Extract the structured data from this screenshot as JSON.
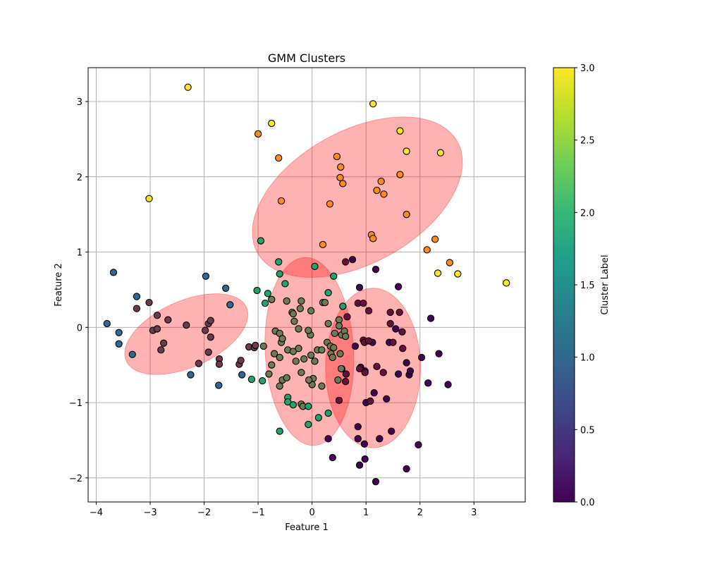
{
  "chart_data": {
    "type": "scatter",
    "title": "GMM Clusters",
    "xlabel": "Feature 1",
    "ylabel": "Feature 2",
    "xlim": [
      -4.15,
      3.95
    ],
    "ylim": [
      -2.32,
      3.45
    ],
    "xticks": [
      -4,
      -3,
      -2,
      -1,
      0,
      1,
      2,
      3
    ],
    "yticks": [
      -2,
      -1,
      0,
      1,
      2,
      3
    ],
    "grid": true,
    "colorbar": {
      "label": "Cluster Label",
      "range": [
        0.0,
        3.0
      ],
      "ticks": [
        "0.0",
        "0.5",
        "1.0",
        "1.5",
        "2.0",
        "2.5",
        "3.0"
      ],
      "colormap": [
        "#440154",
        "#482878",
        "#3e4989",
        "#31688e",
        "#26828e",
        "#1f9e89",
        "#35b779",
        "#6ece58",
        "#b5de2b",
        "#fde725"
      ]
    },
    "ellipses": [
      {
        "cx": 0.84,
        "cy": 1.73,
        "rx": 2.12,
        "ry": 0.88,
        "angle_deg": -29,
        "color": "#ff0000",
        "alpha": 0.3
      },
      {
        "cx": -2.33,
        "cy": -0.09,
        "rx": 1.22,
        "ry": 0.44,
        "angle_deg": -24,
        "color": "#ff0000",
        "alpha": 0.3
      },
      {
        "cx": -0.05,
        "cy": -0.32,
        "rx": 0.82,
        "ry": 1.25,
        "angle_deg": -3,
        "color": "#ff0000",
        "alpha": 0.3
      },
      {
        "cx": 1.13,
        "cy": -0.54,
        "rx": 0.88,
        "ry": 1.06,
        "angle_deg": 0,
        "color": "#ff0000",
        "alpha": 0.3
      }
    ],
    "series": [
      {
        "label_value": 0,
        "color": "#440154",
        "points": [
          [
            0.75,
            0.9
          ],
          [
            0.88,
            0.53
          ],
          [
            0.8,
            -0.25
          ],
          [
            0.9,
            -0.53
          ],
          [
            0.98,
            -0.58
          ],
          [
            0.85,
            -1.32
          ],
          [
            0.97,
            -1.55
          ],
          [
            0.85,
            -1.48
          ],
          [
            0.98,
            -1.75
          ],
          [
            1.0,
            -1.0
          ],
          [
            1.15,
            -0.87
          ],
          [
            1.25,
            -1.48
          ],
          [
            1.38,
            -0.95
          ],
          [
            1.47,
            -1.38
          ],
          [
            1.6,
            -0.62
          ],
          [
            1.75,
            -0.47
          ],
          [
            1.8,
            -0.63
          ],
          [
            1.82,
            -0.58
          ],
          [
            1.97,
            -1.56
          ],
          [
            2.03,
            -0.4
          ],
          [
            2.15,
            -0.74
          ],
          [
            2.2,
            0.12
          ],
          [
            2.35,
            -0.35
          ],
          [
            2.52,
            -0.76
          ],
          [
            1.18,
            0.77
          ],
          [
            1.6,
            0.54
          ],
          [
            0.3,
            -1.48
          ],
          [
            0.38,
            -1.73
          ],
          [
            0.88,
            -1.83
          ],
          [
            1.18,
            -2.05
          ],
          [
            1.75,
            -1.88
          ],
          [
            1.12,
            -0.2
          ],
          [
            1.55,
            -0.02
          ],
          [
            1.43,
            -0.2
          ]
        ]
      },
      {
        "label_value": 0.45,
        "color": "#6b0e3d",
        "points": [
          [
            0.62,
            0.87
          ],
          [
            0.85,
            0.32
          ],
          [
            0.95,
            0.32
          ],
          [
            1.05,
            0.22
          ],
          [
            0.65,
            0.14
          ],
          [
            0.95,
            -0.17
          ],
          [
            0.97,
            -0.2
          ],
          [
            1.05,
            -0.18
          ],
          [
            1.2,
            -0.52
          ],
          [
            1.32,
            -0.6
          ],
          [
            1.45,
            0.2
          ],
          [
            1.45,
            0.05
          ],
          [
            1.62,
            0.2
          ],
          [
            1.67,
            -0.06
          ],
          [
            1.68,
            -0.28
          ],
          [
            1.5,
            -0.2
          ],
          [
            0.88,
            -0.55
          ],
          [
            0.98,
            -0.6
          ],
          [
            1.08,
            -0.98
          ],
          [
            0.5,
            -0.97
          ],
          [
            0.62,
            -0.72
          ],
          [
            0.55,
            -0.55
          ],
          [
            0.63,
            -0.62
          ]
        ]
      },
      {
        "label_value": 0.6,
        "color": "#6e3a4e",
        "points": [
          [
            -3.02,
            0.33
          ],
          [
            -3.25,
            0.25
          ],
          [
            -2.95,
            -0.04
          ],
          [
            -2.87,
            -0.02
          ],
          [
            -2.87,
            0.16
          ],
          [
            -2.8,
            -0.3
          ],
          [
            -2.75,
            -0.21
          ],
          [
            -2.67,
            0.1
          ],
          [
            -2.33,
            0.03
          ],
          [
            -2.1,
            -0.48
          ],
          [
            -1.98,
            -0.04
          ],
          [
            -1.92,
            0.05
          ],
          [
            -1.88,
            0.09
          ],
          [
            -1.92,
            -0.33
          ],
          [
            -1.88,
            -0.13
          ],
          [
            -1.72,
            -0.42
          ],
          [
            -1.72,
            -0.49
          ],
          [
            -1.35,
            -0.49
          ],
          [
            -1.32,
            -0.44
          ],
          [
            -1.17,
            -0.26
          ],
          [
            -1.07,
            -0.27
          ],
          [
            -1.05,
            -0.24
          ]
        ]
      },
      {
        "label_value": 1.0,
        "color": "#31688e",
        "points": [
          [
            -3.68,
            0.73
          ],
          [
            -3.8,
            0.05
          ],
          [
            -3.58,
            -0.07
          ],
          [
            -3.58,
            -0.22
          ],
          [
            -3.33,
            -0.36
          ],
          [
            -3.25,
            0.41
          ],
          [
            -1.97,
            0.68
          ],
          [
            -1.6,
            0.52
          ],
          [
            -1.52,
            0.3
          ],
          [
            -1.73,
            -0.77
          ],
          [
            -2.25,
            -0.63
          ],
          [
            -1.3,
            -0.63
          ]
        ]
      },
      {
        "label_value": 1.45,
        "color": "#6e7a52",
        "points": [
          [
            -0.9,
            -0.25
          ],
          [
            -0.75,
            0.37
          ],
          [
            -0.68,
            -0.05
          ],
          [
            -0.6,
            -0.08
          ],
          [
            -0.57,
            -0.2
          ],
          [
            -0.55,
            -0.15
          ],
          [
            -0.47,
            0.35
          ],
          [
            -0.37,
            0.2
          ],
          [
            -0.33,
            0.08
          ],
          [
            -0.35,
            0.18
          ],
          [
            -0.22,
            0.25
          ],
          [
            -0.2,
            0.35
          ],
          [
            -0.02,
            0.22
          ],
          [
            -0.25,
            -0.02
          ],
          [
            -0.03,
            -0.1
          ],
          [
            -0.07,
            -0.04
          ],
          [
            -0.45,
            -0.3
          ],
          [
            -0.35,
            -0.32
          ],
          [
            -0.25,
            -0.28
          ],
          [
            -0.15,
            -0.42
          ],
          [
            -0.3,
            -0.45
          ],
          [
            -0.6,
            -0.4
          ],
          [
            -0.7,
            -0.35
          ],
          [
            -0.75,
            -0.5
          ],
          [
            -0.8,
            -0.62
          ],
          [
            -0.6,
            -0.78
          ],
          [
            -0.55,
            -0.7
          ],
          [
            -0.47,
            -0.67
          ],
          [
            -0.2,
            -0.6
          ],
          [
            -0.02,
            -0.37
          ],
          [
            0.1,
            -0.3
          ],
          [
            0.18,
            -0.3
          ],
          [
            0.28,
            -0.2
          ],
          [
            0.34,
            -0.25
          ],
          [
            0.4,
            -0.27
          ],
          [
            0.42,
            -0.08
          ],
          [
            0.5,
            0.1
          ],
          [
            0.55,
            -0.1
          ],
          [
            0.6,
            -0.05
          ],
          [
            0.62,
            -0.12
          ],
          [
            0.52,
            -0.35
          ],
          [
            0.35,
            -0.35
          ],
          [
            0.38,
            -0.4
          ],
          [
            0.3,
            0.05
          ],
          [
            0.2,
            0.33
          ],
          [
            0.24,
            0.33
          ],
          [
            0.54,
            -0.55
          ],
          [
            0.05,
            -0.45
          ],
          [
            0.02,
            -0.68
          ],
          [
            0.0,
            -0.76
          ],
          [
            -0.06,
            -0.7
          ],
          [
            -0.2,
            -1.02
          ],
          [
            -0.17,
            -1.05
          ],
          [
            0.18,
            -0.78
          ],
          [
            0.48,
            -0.7
          ],
          [
            0.5,
            0.02
          ]
        ]
      },
      {
        "label_value": 2.0,
        "color": "#21a36c",
        "points": [
          [
            -0.95,
            1.15
          ],
          [
            -0.62,
            0.87
          ],
          [
            -0.6,
            0.71
          ],
          [
            -0.5,
            0.58
          ],
          [
            -1.02,
            0.49
          ],
          [
            -0.82,
            0.45
          ],
          [
            -0.87,
            0.32
          ],
          [
            0.05,
            0.81
          ],
          [
            0.4,
            0.68
          ],
          [
            0.3,
            0.46
          ],
          [
            0.57,
            0.28
          ],
          [
            -0.6,
            -1.38
          ],
          [
            -0.45,
            -0.93
          ],
          [
            -0.45,
            -0.99
          ],
          [
            -0.35,
            -1.03
          ],
          [
            -0.07,
            -1.05
          ],
          [
            -0.07,
            -1.29
          ],
          [
            0.12,
            -1.2
          ],
          [
            0.3,
            -1.14
          ],
          [
            -1.12,
            -0.69
          ],
          [
            -0.92,
            -0.71
          ]
        ]
      },
      {
        "label_value": 2.65,
        "color": "#ff8c1a",
        "points": [
          [
            -1.0,
            2.57
          ],
          [
            -0.62,
            2.25
          ],
          [
            -0.57,
            1.68
          ],
          [
            0.46,
            2.27
          ],
          [
            0.53,
            2.13
          ],
          [
            0.52,
            1.99
          ],
          [
            0.57,
            1.91
          ],
          [
            0.33,
            1.64
          ],
          [
            0.2,
            1.1
          ],
          [
            1.1,
            1.23
          ],
          [
            1.13,
            1.18
          ],
          [
            1.2,
            1.82
          ],
          [
            1.28,
            1.94
          ],
          [
            1.33,
            1.77
          ],
          [
            1.63,
            2.03
          ],
          [
            1.75,
            1.5
          ],
          [
            2.13,
            1.03
          ],
          [
            2.28,
            1.17
          ],
          [
            2.55,
            0.86
          ]
        ]
      },
      {
        "label_value": 3.0,
        "color": "#fde725",
        "points": [
          [
            -2.3,
            3.19
          ],
          [
            1.13,
            2.97
          ],
          [
            -0.75,
            2.71
          ],
          [
            1.63,
            2.61
          ],
          [
            1.75,
            2.34
          ],
          [
            2.38,
            2.32
          ],
          [
            -3.02,
            1.71
          ],
          [
            2.33,
            0.72
          ],
          [
            2.7,
            0.71
          ],
          [
            3.6,
            0.59
          ]
        ]
      }
    ]
  }
}
